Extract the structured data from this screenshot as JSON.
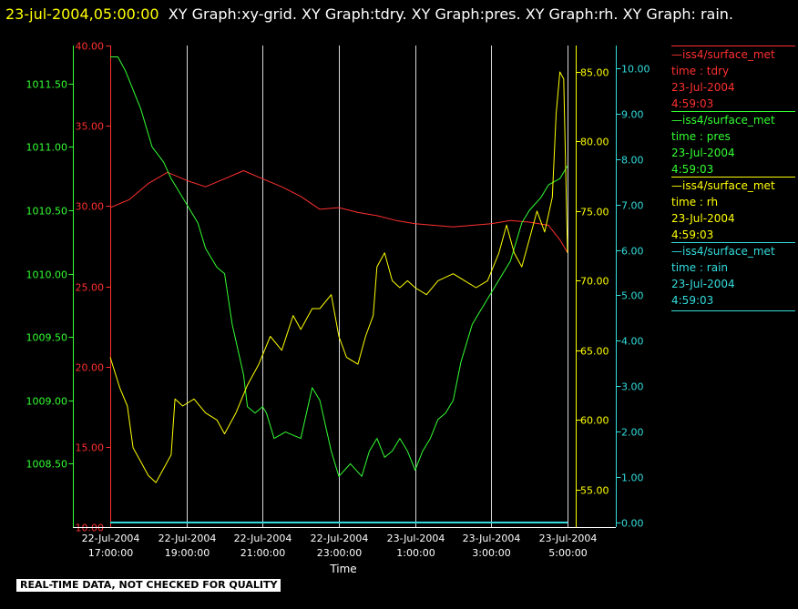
{
  "header": {
    "timestamp": "23-jul-2004,05:00:00",
    "title_rest": "XY Graph:xy-grid.  XY Graph:tdry.  XY Graph:pres.  XY Graph:rh.  XY Graph: rain."
  },
  "disclaimer": "REAL-TIME DATA, NOT CHECKED FOR QUALITY",
  "legend": [
    {
      "source": "—iss4/surface_met",
      "variable": "time : tdry",
      "date": "23-Jul-2004",
      "time": "4:59:03",
      "color": "#ff3030"
    },
    {
      "source": "—iss4/surface_met",
      "variable": "time : pres",
      "date": "23-Jul-2004",
      "time": "4:59:03",
      "color": "#33ff33"
    },
    {
      "source": "—iss4/surface_met",
      "variable": "time : rh",
      "date": "23-Jul-2004",
      "time": "4:59:03",
      "color": "#ffff00"
    },
    {
      "source": "—iss4/surface_met",
      "variable": "time : rain",
      "date": "23-Jul-2004",
      "time": "4:59:03",
      "color": "#33dddd"
    }
  ],
  "chart_data": {
    "type": "line",
    "xlabel": "Time",
    "x_ticks": [
      {
        "date": "22-Jul-2004",
        "time": "17:00:00"
      },
      {
        "date": "22-Jul-2004",
        "time": "19:00:00"
      },
      {
        "date": "22-Jul-2004",
        "time": "21:00:00"
      },
      {
        "date": "22-Jul-2004",
        "time": "23:00:00"
      },
      {
        "date": "23-Jul-2004",
        "time": "1:00:00"
      },
      {
        "date": "23-Jul-2004",
        "time": "3:00:00"
      },
      {
        "date": "23-Jul-2004",
        "time": "5:00:00"
      }
    ],
    "x_range_hours": [
      0,
      12
    ],
    "grid": true,
    "axes": {
      "tdry": {
        "range": [
          10,
          40
        ],
        "ticks": [
          "10.00",
          "15.00",
          "20.00",
          "25.00",
          "30.00",
          "35.00",
          "40.00"
        ],
        "color": "#ff3030"
      },
      "pres": {
        "range": [
          1008.0,
          1011.8
        ],
        "ticks": [
          "1008.50",
          "1009.00",
          "1009.50",
          "1010.00",
          "1010.50",
          "1011.00",
          "1011.50"
        ],
        "color": "#33ff33"
      },
      "rh": {
        "range": [
          52.3,
          86.9
        ],
        "ticks": [
          "55.00",
          "60.00",
          "65.00",
          "70.00",
          "75.00",
          "80.00",
          "85.00"
        ],
        "color": "#ffff00"
      },
      "rain": {
        "range": [
          -0.1,
          10.5
        ],
        "ticks": [
          "0.00",
          "1.00",
          "2.00",
          "3.00",
          "4.00",
          "5.00",
          "6.00",
          "7.00",
          "8.00",
          "9.00",
          "10.00"
        ],
        "color": "#33dddd"
      }
    },
    "series": [
      {
        "key": "tdry",
        "name": "iss4/surface_met time : tdry",
        "color": "#ff3030",
        "x": [
          0,
          0.5,
          1,
          1.5,
          2,
          2.5,
          3,
          3.5,
          4,
          4.5,
          5,
          5.5,
          6,
          6.5,
          7,
          7.5,
          8,
          8.5,
          9,
          9.5,
          10,
          10.5,
          11,
          11.5,
          11.8,
          12
        ],
        "y": [
          29.9,
          30.4,
          31.4,
          32.1,
          31.6,
          31.2,
          31.7,
          32.2,
          31.7,
          31.2,
          30.6,
          29.8,
          29.9,
          29.6,
          29.4,
          29.1,
          28.9,
          28.8,
          28.7,
          28.8,
          28.9,
          29.1,
          29.0,
          28.8,
          27.9,
          27.1
        ]
      },
      {
        "key": "pres",
        "name": "iss4/surface_met time : pres",
        "color": "#33ff33",
        "x": [
          0,
          0.2,
          0.4,
          0.8,
          1.1,
          1.4,
          1.6,
          2.0,
          2.3,
          2.5,
          2.8,
          3.0,
          3.2,
          3.5,
          3.6,
          3.8,
          4.0,
          4.1,
          4.3,
          4.6,
          5.0,
          5.3,
          5.5,
          5.8,
          6.0,
          6.3,
          6.6,
          6.8,
          7.0,
          7.2,
          7.4,
          7.6,
          7.8,
          8.0,
          8.2,
          8.4,
          8.6,
          8.8,
          9.0,
          9.2,
          9.5,
          10.0,
          10.5,
          10.8,
          11.0,
          11.3,
          11.5,
          11.8,
          12
        ],
        "y": [
          1011.71,
          1011.71,
          1011.6,
          1011.3,
          1011.0,
          1010.88,
          1010.75,
          1010.55,
          1010.4,
          1010.2,
          1010.05,
          1010.0,
          1009.6,
          1009.2,
          1008.95,
          1008.9,
          1008.95,
          1008.9,
          1008.7,
          1008.75,
          1008.7,
          1009.1,
          1009.0,
          1008.6,
          1008.4,
          1008.5,
          1008.4,
          1008.6,
          1008.7,
          1008.55,
          1008.6,
          1008.7,
          1008.6,
          1008.45,
          1008.6,
          1008.7,
          1008.85,
          1008.9,
          1009.0,
          1009.3,
          1009.6,
          1009.85,
          1010.1,
          1010.4,
          1010.5,
          1010.6,
          1010.7,
          1010.75,
          1010.85
        ]
      },
      {
        "key": "rh",
        "name": "iss4/surface_met time : rh",
        "color": "#ffff00",
        "x": [
          0,
          0.25,
          0.45,
          0.6,
          0.8,
          1.0,
          1.2,
          1.4,
          1.6,
          1.7,
          1.9,
          2.2,
          2.5,
          2.8,
          3.0,
          3.3,
          3.6,
          3.9,
          4.2,
          4.5,
          4.8,
          5.0,
          5.3,
          5.5,
          5.8,
          6.0,
          6.2,
          6.5,
          6.7,
          6.9,
          7.0,
          7.2,
          7.4,
          7.6,
          7.8,
          8.0,
          8.3,
          8.6,
          9.0,
          9.3,
          9.6,
          9.9,
          10.2,
          10.4,
          10.6,
          10.8,
          11.0,
          11.2,
          11.4,
          11.6,
          11.7,
          11.8,
          11.9,
          12
        ],
        "y": [
          64.5,
          62.3,
          61.0,
          58.0,
          57.0,
          56.0,
          55.5,
          56.5,
          57.5,
          61.5,
          61.0,
          61.5,
          60.5,
          60.0,
          59.0,
          60.5,
          62.5,
          64.0,
          66.0,
          65.0,
          67.5,
          66.5,
          68.0,
          68.0,
          69.0,
          66.0,
          64.5,
          64.0,
          66.0,
          67.5,
          71.0,
          72.0,
          70.0,
          69.5,
          70.0,
          69.5,
          69.0,
          70.0,
          70.5,
          70.0,
          69.5,
          70.0,
          72.0,
          74.0,
          72.0,
          71.0,
          73.0,
          75.0,
          73.5,
          76.0,
          82.0,
          85.0,
          84.5,
          72.0
        ]
      },
      {
        "key": "rain",
        "name": "iss4/surface_met time : rain",
        "color": "#33dddd",
        "x": [
          0,
          12
        ],
        "y": [
          0,
          0
        ]
      }
    ]
  }
}
